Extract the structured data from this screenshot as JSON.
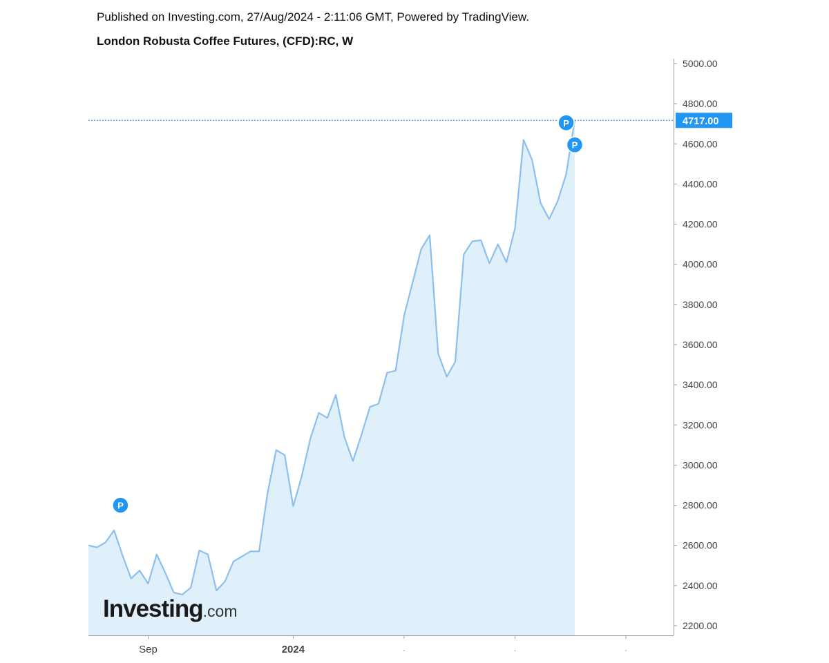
{
  "header": {
    "published": "Published on Investing.com, 27/Aug/2024 - 2:11:06 GMT, Powered by TradingView.",
    "title": "London Robusta Coffee Futures, (CFD):RC, W"
  },
  "logo": {
    "main": "Investing",
    "suffix": ".com"
  },
  "colors": {
    "line": "#8bbfee",
    "area": "#e0f0fa",
    "price_label_bg": "#2196f3",
    "marker": "#2196f3",
    "axis": "#999999"
  },
  "chart_data": {
    "type": "area",
    "title": "London Robusta Coffee Futures, (CFD):RC, W",
    "xlabel": "",
    "ylabel": "",
    "ylim": [
      2150,
      5050
    ],
    "y_ticks": [
      "5000.00",
      "4800.00",
      "4600.00",
      "4400.00",
      "4200.00",
      "4000.00",
      "3800.00",
      "3600.00",
      "3400.00",
      "3200.00",
      "3000.00",
      "2800.00",
      "2600.00",
      "2400.00",
      "2200.00"
    ],
    "x_tick_labels": [
      {
        "label": "Sep",
        "week": 7
      },
      {
        "label": "2024",
        "week": 24
      },
      {
        "label": "",
        "week": 37
      },
      {
        "label": "",
        "week": 50
      },
      {
        "label": "",
        "week": 63
      }
    ],
    "x_range_weeks": [
      0,
      66
    ],
    "series": [
      {
        "values": [
          2600,
          2590,
          2615,
          2675,
          2550,
          2435,
          2475,
          2410,
          2555,
          2465,
          2365,
          2355,
          2390,
          2575,
          2555,
          2375,
          2420,
          2520,
          2545,
          2570,
          2570,
          2860,
          3075,
          3050,
          2795,
          2945,
          3130,
          3260,
          3235,
          3350,
          3140,
          3020,
          3150,
          3290,
          3305,
          3460,
          3470,
          3745,
          3910,
          4075,
          4145,
          3555,
          3440,
          3515,
          4050,
          4115,
          4120,
          4005,
          4100,
          4010,
          4180,
          4620,
          4520,
          4305,
          4225,
          4315,
          4450,
          4717
        ]
      }
    ],
    "last_price": "4717.00",
    "last_value": 4717,
    "markers": [
      {
        "label": "P",
        "week": 4,
        "value": 2800
      },
      {
        "label": "P",
        "week": 56,
        "value": 4705
      },
      {
        "label": "P",
        "week": 57,
        "value": 4595
      }
    ]
  }
}
